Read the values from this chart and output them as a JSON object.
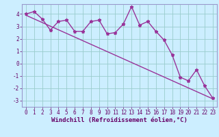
{
  "title": "",
  "xlabel": "Windchill (Refroidissement éolien,°C)",
  "bg_color": "#cceeff",
  "line_color": "#993399",
  "grid_color": "#99cccc",
  "axis_color": "#9999cc",
  "xlim": [
    -0.5,
    23.5
  ],
  "ylim": [
    -3.5,
    4.8
  ],
  "yticks": [
    -3,
    -2,
    -1,
    0,
    1,
    2,
    3,
    4
  ],
  "xticks": [
    0,
    1,
    2,
    3,
    4,
    5,
    6,
    7,
    8,
    9,
    10,
    11,
    12,
    13,
    14,
    15,
    16,
    17,
    18,
    19,
    20,
    21,
    22,
    23
  ],
  "data_x": [
    0,
    1,
    2,
    3,
    4,
    5,
    6,
    7,
    8,
    9,
    10,
    11,
    12,
    13,
    14,
    15,
    16,
    17,
    18,
    19,
    20,
    21,
    22,
    23
  ],
  "data_y": [
    4.0,
    4.2,
    3.6,
    2.7,
    3.4,
    3.5,
    2.6,
    2.6,
    3.4,
    3.5,
    2.4,
    2.5,
    3.2,
    4.6,
    3.1,
    3.4,
    2.6,
    1.9,
    0.7,
    -1.1,
    -1.4,
    -0.5,
    -1.8,
    -2.8
  ],
  "trend_x": [
    0,
    23
  ],
  "trend_y": [
    3.9,
    -2.85
  ],
  "font_color": "#660066",
  "tick_fontsize": 5.5,
  "label_fontsize": 6.5
}
